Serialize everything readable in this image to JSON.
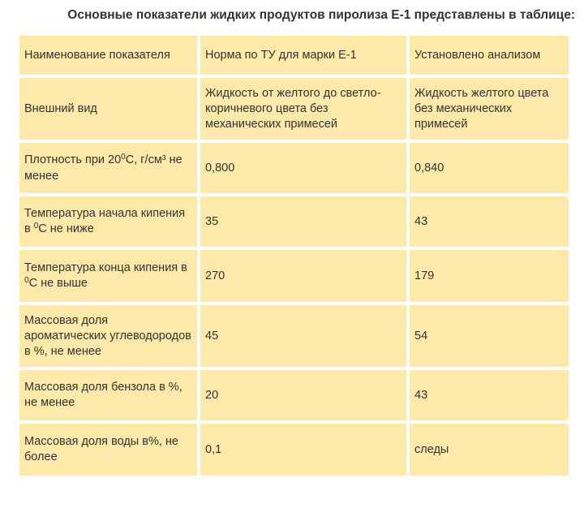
{
  "title": "Основные показатели жидких продуктов пиролиза Е-1 представлены в таблице:",
  "table": {
    "headers": [
      "Наименование показателя",
      "Норма по ТУ для марки Е-1",
      "Установлено анализом"
    ],
    "rows": [
      {
        "indicator": "Внешний вид",
        "norm": "Жидкость от желтого до светло-коричневого цвета без механических примесей",
        "measured": "Жидкость желтого цвета без механических примесей"
      },
      {
        "indicator_parts": [
          "Плотность при 20",
          "0",
          "С, г/см³ не менее"
        ],
        "norm": "0,800",
        "measured": "0,840"
      },
      {
        "indicator_parts": [
          "Температура начала кипения в ",
          "0",
          "С не ниже"
        ],
        "norm": "35",
        "measured": "43"
      },
      {
        "indicator_parts": [
          "Температура конца кипения в ",
          "0",
          "С не выше"
        ],
        "norm": "270",
        "measured": "179"
      },
      {
        "indicator": "Массовая доля ароматических углеводородов в %, не менее",
        "norm": "45",
        "measured": "54"
      },
      {
        "indicator": "Массовая доля бензола в %, не менее",
        "norm": "20",
        "measured": "43"
      },
      {
        "indicator": "Массовая доля воды в%, не более",
        "norm": "0,1",
        "measured": "следы"
      }
    ]
  },
  "colors": {
    "cell_background": "#fde9aa",
    "text": "#333333",
    "page_background": "#ffffff"
  }
}
